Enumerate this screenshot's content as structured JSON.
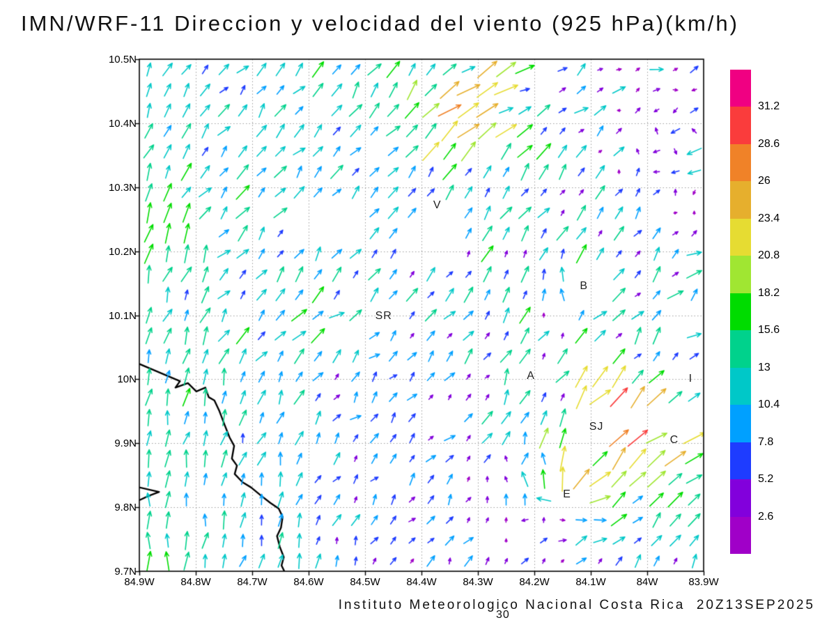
{
  "title": "IMN/WRF-11 Direccion y velocidad del viento (925 hPa)(km/h)",
  "footer": {
    "credit": "Instituto Meteorologico Nacional Costa Rica",
    "datetime": "20Z13SEP2025",
    "forecast_hour": "30"
  },
  "chart_data": {
    "type": "vector_field",
    "variable": "wind direction and speed",
    "level": "925 hPa",
    "units": "km/h",
    "x_axis": {
      "ticks": [
        "84.9W",
        "84.8W",
        "84.7W",
        "84.6W",
        "84.5W",
        "84.4W",
        "84.3W",
        "84.2W",
        "84.1W",
        "84W",
        "83.9W"
      ],
      "tick_values": [
        84.9,
        84.8,
        84.7,
        84.6,
        84.5,
        84.4,
        84.3,
        84.2,
        84.1,
        84.0,
        83.9
      ],
      "lon_min": 84.9,
      "lon_max": 83.9
    },
    "y_axis": {
      "ticks": [
        "9.7N",
        "9.8N",
        "9.9N",
        "10N",
        "10.1N",
        "10.2N",
        "10.3N",
        "10.4N",
        "10.5N"
      ],
      "tick_values": [
        9.7,
        9.8,
        9.9,
        10.0,
        10.1,
        10.2,
        10.3,
        10.4,
        10.5
      ],
      "lat_min": 9.7,
      "lat_max": 10.5
    },
    "grid_style": {
      "dotted": true,
      "color": "#9a9a9a"
    },
    "colorbar": {
      "levels": [
        2.6,
        5.2,
        7.8,
        10.4,
        13,
        15.6,
        18.2,
        20.8,
        23.4,
        26,
        28.6,
        31.2
      ],
      "labels": [
        "2.6",
        "5.2",
        "7.8",
        "10.4",
        "13",
        "15.6",
        "18.2",
        "20.8",
        "23.4",
        "26",
        "28.6",
        "31.2"
      ],
      "colors": [
        "#a000c8",
        "#8200dc",
        "#1e3cff",
        "#00a0ff",
        "#00c8c8",
        "#00d28c",
        "#00dc00",
        "#a0e632",
        "#e6dc32",
        "#e6af2d",
        "#f08228",
        "#fa3c3c",
        "#f00082"
      ]
    },
    "stations": [
      {
        "label": "V",
        "lon": 84.372,
        "lat": 10.27
      },
      {
        "label": "SR",
        "lon": 84.467,
        "lat": 10.097
      },
      {
        "label": "B",
        "lon": 84.112,
        "lat": 10.144
      },
      {
        "label": "A",
        "lon": 84.206,
        "lat": 10.004
      },
      {
        "label": "SJ",
        "lon": 84.09,
        "lat": 9.924
      },
      {
        "label": "C",
        "lon": 83.952,
        "lat": 9.904
      },
      {
        "label": "E",
        "lon": 84.142,
        "lat": 9.819
      },
      {
        "label": "I",
        "lon": 83.923,
        "lat": 9.999
      }
    ],
    "coastline": [
      [
        [
          84.9,
          10.024
        ],
        [
          84.863,
          10.01
        ],
        [
          84.828,
          9.997
        ],
        [
          84.836,
          9.987
        ],
        [
          84.814,
          9.994
        ],
        [
          84.799,
          9.981
        ],
        [
          84.783,
          9.987
        ],
        [
          84.777,
          9.972
        ],
        [
          84.767,
          9.967
        ],
        [
          84.758,
          9.95
        ],
        [
          84.749,
          9.929
        ],
        [
          84.74,
          9.909
        ],
        [
          84.732,
          9.896
        ],
        [
          84.736,
          9.876
        ],
        [
          84.727,
          9.865
        ],
        [
          84.731,
          9.852
        ],
        [
          84.717,
          9.839
        ],
        [
          84.702,
          9.831
        ],
        [
          84.684,
          9.818
        ],
        [
          84.668,
          9.807
        ],
        [
          84.653,
          9.798
        ],
        [
          84.646,
          9.785
        ],
        [
          84.649,
          9.768
        ],
        [
          84.656,
          9.755
        ],
        [
          84.651,
          9.738
        ],
        [
          84.644,
          9.722
        ],
        [
          84.648,
          9.709
        ],
        [
          84.643,
          9.7
        ]
      ],
      [
        [
          84.9,
          9.831
        ],
        [
          84.865,
          9.824
        ],
        [
          84.883,
          9.818
        ],
        [
          84.9,
          9.811
        ]
      ]
    ],
    "grid": {
      "cols": 30,
      "rows": 25
    },
    "field_model": {
      "seed": 11,
      "v_base": 11,
      "v_east_decay": 0.45,
      "v_wave_amp": 3,
      "u_wave_amp": 2.5,
      "north_drift_u": 9,
      "east_u": 4,
      "noise_amp": 7,
      "patchy": {
        "start_s": 0.33,
        "full_s": 0.58,
        "weak_threshold": 0.4,
        "weak_floor": 0.22
      },
      "centers": [
        {
          "s": 0.758,
          "t": 0.149,
          "str": 17,
          "r": 0.085
        },
        {
          "s": 0.788,
          "t": 0.555,
          "str": 9,
          "r": 0.075
        }
      ],
      "jets": [
        {
          "s": 0.97,
          "t": 0.22,
          "r": 0.13,
          "du": 10,
          "dv": 3
        },
        {
          "s": 0.88,
          "t": 0.3,
          "r": 0.1,
          "du": 6,
          "dv": 2
        },
        {
          "s": 0.97,
          "t": 0.84,
          "r": 0.12,
          "du": -9,
          "dv": -4
        },
        {
          "s": 0.6,
          "t": 0.93,
          "r": 0.1,
          "du": 7,
          "dv": 0
        }
      ],
      "boosts": [
        {
          "s": 0.08,
          "t": 0.72,
          "r": 0.12,
          "amp": 0.45
        },
        {
          "s": 0.26,
          "t": 0.5,
          "r": 0.13,
          "amp": 0.5
        },
        {
          "s": 0.57,
          "t": 0.9,
          "r": 0.1,
          "amp": 0.45
        },
        {
          "s": 0.85,
          "t": 0.33,
          "r": 0.12,
          "amp": 0.55
        },
        {
          "s": 0.97,
          "t": 0.55,
          "r": 0.08,
          "amp": 0.6
        },
        {
          "s": 0.985,
          "t": 0.8,
          "r": 0.05,
          "amp": 0.9
        }
      ],
      "gaps": [
        {
          "s0": 0.28,
          "s1": 0.41,
          "t0": 0.64,
          "t1": 0.72
        },
        {
          "s0": 0.475,
          "s1": 0.575,
          "t0": 0.61,
          "t1": 0.67
        },
        {
          "s0": 0.81,
          "s1": 0.99,
          "t0": 0.285,
          "t1": 0.33
        }
      ]
    }
  }
}
